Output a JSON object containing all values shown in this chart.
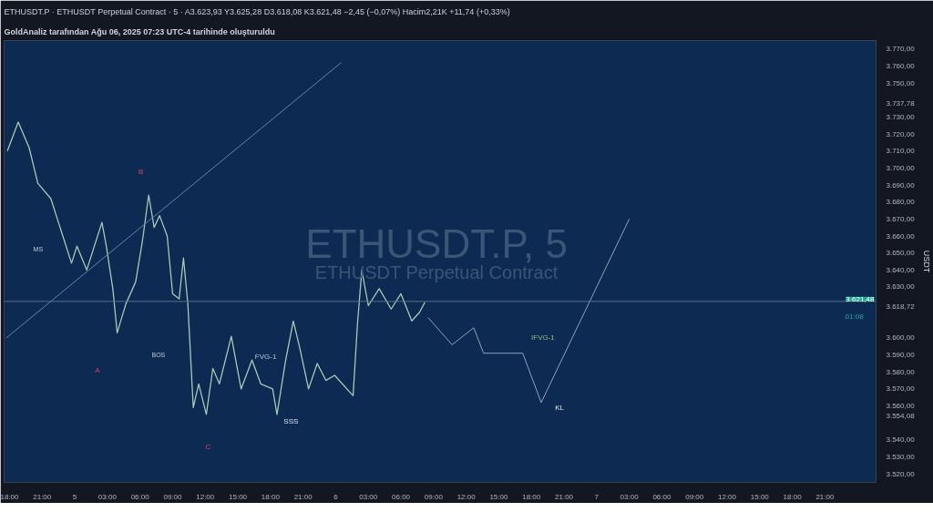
{
  "chart_data": {
    "type": "line",
    "title": "ETHUSDT.P · ETHUSDT Perpetual Contract · 5 · A3.623,93 Y3.625,28 D3.618,08 K3.621,48 −2,45 (−0,07%) Hacim2,21K +11,74 (+0,33%)",
    "ylabel": "USDT",
    "xlim": [
      "2025-08-04T17:30",
      "2025-08-08T01:42"
    ],
    "xticks": [
      {
        "value": "2025-08-04T18:00",
        "label": "18:00"
      },
      {
        "value": "2025-08-04T21:00",
        "label": "21:00"
      },
      {
        "value": "2025-08-05T00:00",
        "label": "5"
      },
      {
        "value": "2025-08-05T03:00",
        "label": "03:00"
      },
      {
        "value": "2025-08-05T06:00",
        "label": "06:00"
      },
      {
        "value": "2025-08-05T09:00",
        "label": "09:00"
      },
      {
        "value": "2025-08-05T12:00",
        "label": "12:00"
      },
      {
        "value": "2025-08-05T15:00",
        "label": "15:00"
      },
      {
        "value": "2025-08-05T18:00",
        "label": "18:00"
      },
      {
        "value": "2025-08-05T21:00",
        "label": "21:00"
      },
      {
        "value": "2025-08-06T00:00",
        "label": "6"
      },
      {
        "value": "2025-08-06T03:00",
        "label": "03:00"
      },
      {
        "value": "2025-08-06T06:00",
        "label": "06:00"
      },
      {
        "value": "2025-08-06T09:00",
        "label": "09:00"
      },
      {
        "value": "2025-08-06T12:00",
        "label": "12:00"
      },
      {
        "value": "2025-08-06T15:00",
        "label": "15:00"
      },
      {
        "value": "2025-08-06T18:00",
        "label": "18:00"
      },
      {
        "value": "2025-08-06T21:00",
        "label": "21:00"
      },
      {
        "value": "2025-08-07T00:00",
        "label": "7"
      },
      {
        "value": "2025-08-07T03:00",
        "label": "03:00"
      },
      {
        "value": "2025-08-07T06:00",
        "label": "06:00"
      },
      {
        "value": "2025-08-07T09:00",
        "label": "09:00"
      },
      {
        "value": "2025-08-07T12:00",
        "label": "12:00"
      },
      {
        "value": "2025-08-07T15:00",
        "label": "15:00"
      },
      {
        "value": "2025-08-07T18:00",
        "label": "18:00"
      },
      {
        "value": "2025-08-07T21:00",
        "label": "21:00"
      }
    ],
    "ylim": [
      3515,
      3775
    ],
    "yticks": [
      {
        "value": 3770,
        "label": "3.770,00"
      },
      {
        "value": 3760,
        "label": "3.760,00"
      },
      {
        "value": 3750,
        "label": "3.750,00"
      },
      {
        "value": 3737.78,
        "label": "3.737,78"
      },
      {
        "value": 3730,
        "label": "3.730,00"
      },
      {
        "value": 3720,
        "label": "3.720,00"
      },
      {
        "value": 3710,
        "label": "3.710,00"
      },
      {
        "value": 3700,
        "label": "3.700,00"
      },
      {
        "value": 3690,
        "label": "3.690,00"
      },
      {
        "value": 3680,
        "label": "3.680,00"
      },
      {
        "value": 3670,
        "label": "3.670,00"
      },
      {
        "value": 3660,
        "label": "3.660,00"
      },
      {
        "value": 3650,
        "label": "3.650,00"
      },
      {
        "value": 3640,
        "label": "3.640,00"
      },
      {
        "value": 3630,
        "label": "3.630,00"
      },
      {
        "value": 3618.72,
        "label": "3.618,72"
      },
      {
        "value": 3600,
        "label": "3.600,00"
      },
      {
        "value": 3590,
        "label": "3.590,00"
      },
      {
        "value": 3580,
        "label": "3.580,00"
      },
      {
        "value": 3570,
        "label": "3.570,00"
      },
      {
        "value": 3560,
        "label": "3.560,00"
      },
      {
        "value": 3554.08,
        "label": "3.554,08"
      },
      {
        "value": 3540,
        "label": "3.540,00"
      },
      {
        "value": 3530,
        "label": "3.530,00"
      },
      {
        "value": 3520,
        "label": "3.520,00"
      }
    ],
    "ref_lines": [
      {
        "axis": "y",
        "value": 3621.48,
        "label": "3.621,48",
        "color": "#5a6f85"
      }
    ],
    "series": [
      {
        "color": "#a9c9b4",
        "x": [
          "2025-08-04T17:48",
          "2025-08-04T18:48",
          "2025-08-04T19:48",
          "2025-08-04T20:36",
          "2025-08-04T21:48",
          "2025-08-04T22:36",
          "2025-08-04T23:42",
          "2025-08-05T00:12",
          "2025-08-05T01:06",
          "2025-08-05T02:30",
          "2025-08-05T02:54",
          "2025-08-05T03:30",
          "2025-08-05T03:54",
          "2025-08-05T04:42",
          "2025-08-05T05:36",
          "2025-08-05T06:12",
          "2025-08-05T06:48",
          "2025-08-05T07:18",
          "2025-08-05T07:48",
          "2025-08-05T08:30",
          "2025-08-05T09:00",
          "2025-08-05T09:36",
          "2025-08-05T10:00",
          "2025-08-05T10:24",
          "2025-08-05T10:54",
          "2025-08-05T11:24",
          "2025-08-05T12:06",
          "2025-08-05T12:42",
          "2025-08-05T13:18",
          "2025-08-05T14:24",
          "2025-08-05T15:18",
          "2025-08-05T16:18",
          "2025-08-05T17:06",
          "2025-08-05T18:12",
          "2025-08-05T18:36",
          "2025-08-05T19:24",
          "2025-08-05T20:06",
          "2025-08-05T20:42",
          "2025-08-05T21:30",
          "2025-08-05T22:18",
          "2025-08-05T23:06",
          "2025-08-05T23:54",
          "2025-08-06T01:36",
          "2025-08-06T02:00",
          "2025-08-06T02:24",
          "2025-08-06T03:00",
          "2025-08-06T04:00",
          "2025-08-06T05:06",
          "2025-08-06T06:00",
          "2025-08-06T07:00",
          "2025-08-06T07:42",
          "2025-08-06T08:12"
        ],
        "values": [
          3710,
          3727,
          3712,
          3691,
          3682,
          3666,
          3644,
          3654,
          3640,
          3668,
          3654,
          3629,
          3603,
          3620,
          3633,
          3656,
          3684,
          3665,
          3672,
          3660,
          3626,
          3623,
          3647,
          3620,
          3559,
          3573,
          3555,
          3582,
          3573,
          3601,
          3570,
          3587,
          3573,
          3570,
          3555,
          3587,
          3610,
          3594,
          3570,
          3585,
          3575,
          3578,
          3566,
          3608,
          3640,
          3619,
          3629,
          3617,
          3626,
          3610,
          3615,
          3621
        ]
      },
      {
        "color": "#8fa3b8",
        "x": [
          "2025-08-06T08:30",
          "2025-08-06T10:42",
          "2025-08-06T12:42",
          "2025-08-06T13:36",
          "2025-08-06T17:12",
          "2025-08-06T18:54",
          "2025-08-07T03:00"
        ],
        "values": [
          3612,
          3596,
          3606,
          3591,
          3591,
          3562,
          3670
        ]
      },
      {
        "color": "#5f86b0",
        "x": [
          "2025-08-04T17:42",
          "2025-08-06T00:30"
        ],
        "values": [
          3600,
          3762
        ]
      }
    ],
    "annotations": [
      "GoldAnaliz tarafından Ağu 06, 2025 07:23 UTC-4 tarihinde oluşturuldu",
      "B",
      "A",
      "C",
      "MS",
      "BOS",
      "FVG-1",
      "SSS",
      "KL",
      "IFVG-1",
      "ETHUSDT.P, 5",
      "ETHUSDT Perpetual Contract",
      "01:08"
    ]
  }
}
